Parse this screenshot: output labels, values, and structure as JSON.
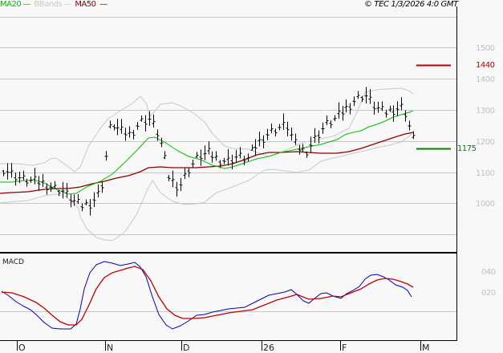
{
  "legend": {
    "ma20": {
      "label": "MA20",
      "color": "#00c000"
    },
    "bbands": {
      "label": "BBands",
      "color": "#c8c8c8"
    },
    "ma50": {
      "label": "MA50",
      "color": "#8b0000"
    }
  },
  "copyright": "© TEC 1/3/2026 4:0 GMT",
  "colors": {
    "background": "#f8f8f8",
    "grid": "#c8c8c8",
    "bars": "#000000",
    "macd": "#0000c0",
    "signal": "#c00000",
    "target_high": "#c00000",
    "target_low": "#008000"
  },
  "price_axis": {
    "labels": [
      "1500",
      "1400",
      "1300",
      "1200",
      "1100",
      "1000"
    ]
  },
  "targets": {
    "high": "1440",
    "low": "1175"
  },
  "macd_panel": {
    "title": "MACD",
    "labels": [
      "040",
      "020"
    ]
  },
  "x_axis": {
    "labels": [
      "O",
      "N",
      "D",
      "26",
      "F",
      "M"
    ]
  },
  "chart_data": [
    {
      "type": "ohlc",
      "title": "Price with MA20, MA50, Bollinger Bands",
      "ylim": [
        920,
        1570
      ],
      "yticks": [
        1000,
        1100,
        1200,
        1300,
        1400,
        1500
      ],
      "grid": true,
      "legend": [
        "MA20",
        "BBands",
        "MA50"
      ],
      "x_ticks": [
        "O",
        "N",
        "D",
        "26",
        "F",
        "M"
      ],
      "annotations": [
        {
          "label": "1440",
          "value": 1440,
          "color": "#c00000"
        },
        {
          "label": "1175",
          "value": 1175,
          "color": "#008000"
        }
      ],
      "close_approx": [
        1110,
        1090,
        1075,
        1070,
        1065,
        1050,
        1040,
        1010,
        990,
        1000,
        1040,
        1260,
        1230,
        1220,
        1260,
        1270,
        1210,
        1080,
        1050,
        1110,
        1150,
        1160,
        1140,
        1135,
        1150,
        1140,
        1190,
        1220,
        1240,
        1250,
        1180,
        1165,
        1210,
        1250,
        1270,
        1300,
        1330,
        1350,
        1310,
        1290,
        1300,
        1310,
        1205
      ],
      "ma20_approx": [
        1075,
        1060,
        1065,
        1050,
        1030,
        1030,
        1050,
        1100,
        1160,
        1220,
        1240,
        1200,
        1150,
        1125,
        1120,
        1140,
        1155,
        1170,
        1175,
        1190,
        1200,
        1230,
        1270,
        1305
      ],
      "ma50_approx": [
        1040,
        1050,
        1055,
        1060,
        1070,
        1090,
        1110,
        1135,
        1150,
        1150,
        1150,
        1155,
        1165,
        1170,
        1175,
        1180,
        1180,
        1175,
        1180,
        1195,
        1215,
        1235
      ]
    },
    {
      "type": "line",
      "title": "MACD",
      "yticks": [
        "020",
        "040"
      ],
      "series": [
        {
          "name": "MACD",
          "color": "#0000c0"
        },
        {
          "name": "Signal",
          "color": "#c00000"
        }
      ]
    }
  ]
}
